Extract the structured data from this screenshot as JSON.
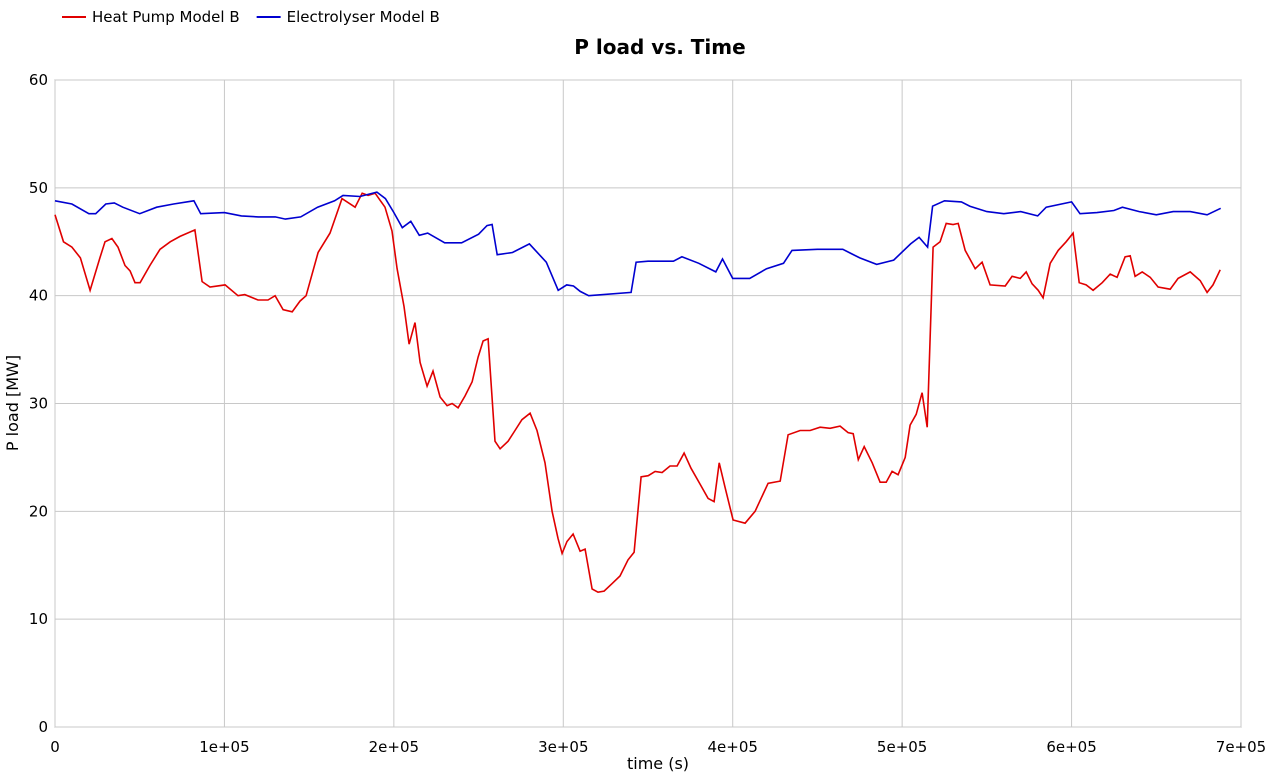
{
  "chart_data": {
    "type": "line",
    "title": "P load vs. Time",
    "x_label": "time (s)",
    "y_label": "P load [MW]",
    "xlim": [
      0,
      700000
    ],
    "ylim": [
      0,
      60
    ],
    "xticks": [
      0,
      {
        "value": 100000,
        "label": "1e+05"
      },
      {
        "value": 200000,
        "label": "2e+05"
      },
      {
        "value": 300000,
        "label": "3e+05"
      },
      {
        "value": 400000,
        "label": "4e+05"
      },
      {
        "value": 500000,
        "label": "5e+05"
      },
      {
        "value": 600000,
        "label": "6e+05"
      },
      {
        "value": 700000,
        "label": "7e+05"
      }
    ],
    "yticks": [
      0,
      10,
      20,
      30,
      40,
      50,
      60
    ],
    "grid": true,
    "series": [
      {
        "name": "Heat Pump Model B",
        "color": "#e00000",
        "x": [
          0,
          5000,
          10000,
          15000,
          20700,
          26500,
          29500,
          33600,
          37200,
          41300,
          44300,
          47200,
          50200,
          56000,
          62000,
          68000,
          73800,
          82600,
          86800,
          91500,
          100400,
          108000,
          112000,
          119800,
          125700,
          129900,
          134600,
          140000,
          144600,
          148200,
          155300,
          162300,
          169400,
          177100,
          181300,
          184800,
          188900,
          194800,
          198900,
          201900,
          206000,
          209000,
          212500,
          215500,
          219600,
          223100,
          227300,
          231400,
          234400,
          237900,
          242000,
          246200,
          249700,
          252700,
          255600,
          259700,
          262700,
          267400,
          271500,
          275600,
          280400,
          284500,
          289200,
          293400,
          296900,
          299300,
          302200,
          305800,
          309900,
          312900,
          317000,
          320500,
          324100,
          328800,
          333500,
          338200,
          341800,
          345900,
          350100,
          354200,
          358300,
          363000,
          367200,
          371300,
          375400,
          380800,
          385500,
          389000,
          392000,
          395500,
          400200,
          407300,
          413200,
          420900,
          428000,
          432700,
          439800,
          445700,
          451600,
          457500,
          463400,
          468100,
          471100,
          474100,
          477600,
          482300,
          487000,
          490600,
          494100,
          497600,
          501800,
          504700,
          508300,
          511800,
          514800,
          518300,
          522400,
          526000,
          530100,
          533100,
          537200,
          543100,
          547200,
          551900,
          560800,
          564900,
          569700,
          573200,
          576700,
          580300,
          583200,
          587400,
          592100,
          596800,
          600900,
          604500,
          608600,
          612700,
          618100,
          622800,
          626900,
          631600,
          634600,
          637500,
          641700,
          646400,
          651100,
          658200,
          662900,
          670000,
          675900,
          680000,
          683500,
          687700
        ],
        "values": [
          47.5,
          45,
          44.5,
          43.5,
          40.5,
          43.5,
          45,
          45.3,
          44.5,
          42.8,
          42.3,
          41.2,
          41.2,
          42.8,
          44.3,
          45,
          45.5,
          46.1,
          41.3,
          40.8,
          41,
          40,
          40.1,
          39.6,
          39.6,
          40,
          38.7,
          38.5,
          39.5,
          40,
          44,
          45.8,
          49,
          48.2,
          49.5,
          49.3,
          49.5,
          48.2,
          46,
          42.5,
          39,
          35.5,
          37.5,
          33.8,
          31.6,
          33,
          30.6,
          29.8,
          30,
          29.6,
          30.7,
          32,
          34.3,
          35.8,
          36,
          26.5,
          25.8,
          26.5,
          27.5,
          28.5,
          29.1,
          27.5,
          24.5,
          20,
          17.5,
          16.1,
          17.2,
          17.9,
          16.3,
          16.5,
          12.8,
          12.5,
          12.6,
          13.3,
          14,
          15.5,
          16.2,
          23.2,
          23.3,
          23.7,
          23.6,
          24.2,
          24.2,
          25.4,
          24,
          22.5,
          21.2,
          20.9,
          24.5,
          22.2,
          19.2,
          18.9,
          20,
          22.6,
          22.8,
          27.1,
          27.5,
          27.5,
          27.8,
          27.7,
          27.9,
          27.3,
          27.2,
          24.8,
          26,
          24.5,
          22.7,
          22.7,
          23.7,
          23.4,
          25,
          28,
          29,
          31,
          27.8,
          44.5,
          45,
          46.7,
          46.6,
          46.7,
          44.2,
          42.5,
          43.1,
          41,
          40.9,
          41.8,
          41.6,
          42.2,
          41.1,
          40.5,
          39.8,
          43,
          44.2,
          45,
          45.8,
          41.2,
          41,
          40.5,
          41.2,
          42,
          41.7,
          43.6,
          43.7,
          41.8,
          42.2,
          41.7,
          40.8,
          40.6,
          41.6,
          42.2,
          41.4,
          40.3,
          41,
          42.4
        ]
      },
      {
        "name": "Electrolyser Model B",
        "color": "#0000d0",
        "x": [
          0,
          10000,
          20000,
          24000,
          30000,
          35000,
          40000,
          50000,
          60000,
          70000,
          82000,
          86000,
          100000,
          110000,
          120000,
          130000,
          136000,
          145000,
          155000,
          165000,
          170000,
          180000,
          190000,
          195000,
          200000,
          205000,
          210000,
          215000,
          220000,
          230000,
          240000,
          250000,
          255000,
          258000,
          261000,
          270000,
          280000,
          290000,
          297000,
          302000,
          306000,
          310000,
          315000,
          340000,
          343000,
          350000,
          365000,
          370000,
          380000,
          390000,
          394000,
          400000,
          410000,
          420000,
          430000,
          435000,
          450000,
          465000,
          470000,
          475000,
          485000,
          495000,
          505000,
          510000,
          515000,
          518000,
          525000,
          535000,
          540000,
          550000,
          560000,
          570000,
          580000,
          585000,
          600000,
          605000,
          615000,
          625000,
          630000,
          640000,
          650000,
          660000,
          670000,
          680000,
          688000
        ],
        "values": [
          48.8,
          48.5,
          47.6,
          47.6,
          48.5,
          48.6,
          48.2,
          47.6,
          48.2,
          48.5,
          48.8,
          47.6,
          47.7,
          47.4,
          47.3,
          47.3,
          47.1,
          47.3,
          48.2,
          48.8,
          49.3,
          49.2,
          49.6,
          49,
          47.7,
          46.3,
          46.9,
          45.6,
          45.8,
          44.9,
          44.9,
          45.7,
          46.5,
          46.6,
          43.8,
          44,
          44.8,
          43.1,
          40.5,
          41,
          40.9,
          40.4,
          40,
          40.3,
          43.1,
          43.2,
          43.2,
          43.6,
          43,
          42.2,
          43.4,
          41.6,
          41.6,
          42.5,
          43,
          44.2,
          44.3,
          44.3,
          43.9,
          43.5,
          42.9,
          43.3,
          44.8,
          45.4,
          44.5,
          48.3,
          48.8,
          48.7,
          48.3,
          47.8,
          47.6,
          47.8,
          47.4,
          48.2,
          48.7,
          47.6,
          47.7,
          47.9,
          48.2,
          47.8,
          47.5,
          47.8,
          47.8,
          47.5,
          48.1
        ]
      }
    ]
  }
}
